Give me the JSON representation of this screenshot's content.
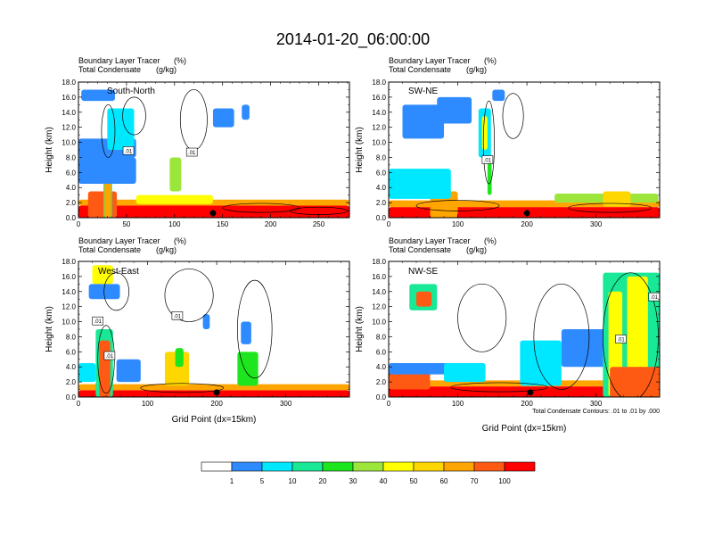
{
  "title": "2014-01-20_06:00:00",
  "colors": {
    "levels": [
      "#ffffff",
      "#2e8bff",
      "#00e8ff",
      "#19e896",
      "#1ee61e",
      "#9ce63c",
      "#ffff00",
      "#ffd700",
      "#ffa500",
      "#ff5a14",
      "#ff0000"
    ],
    "contour": "#000000",
    "marker": "#000000"
  },
  "chart_data": [
    {
      "type": "heatmap",
      "section_label": "South-North",
      "subtitle_left_1": "Boundary Layer Tracer",
      "subtitle_unit_1": "(%)",
      "subtitle_left_2": "Total Condensate",
      "subtitle_unit_2": "(g/kg)",
      "ylabel": "Height (km)",
      "xlabel": "",
      "xlim": [
        0,
        282
      ],
      "ylim": [
        0,
        18
      ],
      "xticks": [
        0,
        50,
        100,
        150,
        200,
        250
      ],
      "yticks": [
        0,
        2,
        4,
        6,
        8,
        10,
        12,
        14,
        16,
        18
      ],
      "ytick_labels": [
        "0.0",
        "2.0",
        "4.0",
        "6.0",
        "8.0",
        "10.0",
        "12.0",
        "14.0",
        "16.0",
        "18.0"
      ],
      "marker_x": 140,
      "contour_labels": [
        {
          "text": ".01",
          "x": 52,
          "y": 8.9
        },
        {
          "text": ".01",
          "x": 118,
          "y": 8.7
        }
      ],
      "tracer_blobs": [
        {
          "x": 0,
          "y": 0,
          "w": 282,
          "h": 1.6,
          "level": 10
        },
        {
          "x": 0,
          "y": 1.6,
          "w": 282,
          "h": 0.8,
          "level": 8
        },
        {
          "x": 10,
          "y": 0,
          "w": 30,
          "h": 3.5,
          "level": 9
        },
        {
          "x": 26,
          "y": 0,
          "w": 9,
          "h": 8.5,
          "level": 3
        },
        {
          "x": 27,
          "y": 0,
          "w": 7,
          "h": 6.5,
          "level": 8
        },
        {
          "x": 0,
          "y": 4.5,
          "w": 60,
          "h": 3.5,
          "level": 1
        },
        {
          "x": 0,
          "y": 8.0,
          "w": 60,
          "h": 2.5,
          "level": 1
        },
        {
          "x": 3,
          "y": 15.5,
          "w": 35,
          "h": 1.5,
          "level": 1
        },
        {
          "x": 30,
          "y": 9.0,
          "w": 28,
          "h": 5.5,
          "level": 2
        },
        {
          "x": 95,
          "y": 3.5,
          "w": 12,
          "h": 4.5,
          "level": 5
        },
        {
          "x": 140,
          "y": 12.0,
          "w": 22,
          "h": 2.5,
          "level": 1
        },
        {
          "x": 170,
          "y": 13.0,
          "w": 8,
          "h": 2.0,
          "level": 1
        },
        {
          "x": 60,
          "y": 1.8,
          "w": 80,
          "h": 1.2,
          "level": 6
        }
      ],
      "condensate_loops": [
        {
          "cx": 31,
          "cy": 11.5,
          "rx": 7,
          "ry": 3.5
        },
        {
          "cx": 58,
          "cy": 13.5,
          "rx": 12,
          "ry": 2.5
        },
        {
          "cx": 120,
          "cy": 13.0,
          "rx": 14,
          "ry": 4.0
        },
        {
          "cx": 190,
          "cy": 1.3,
          "rx": 40,
          "ry": 0.6
        },
        {
          "cx": 250,
          "cy": 0.9,
          "rx": 30,
          "ry": 0.5
        }
      ]
    },
    {
      "type": "heatmap",
      "section_label": "SW-NE",
      "subtitle_left_1": "Boundary Layer Tracer",
      "subtitle_unit_1": "(%)",
      "subtitle_left_2": "Total Condensate",
      "subtitle_unit_2": "(g/kg)",
      "ylabel": "Height (km)",
      "xlabel": "",
      "xlim": [
        0,
        392
      ],
      "ylim": [
        0,
        18
      ],
      "xticks": [
        0,
        100,
        200,
        300
      ],
      "yticks": [
        0,
        2,
        4,
        6,
        8,
        10,
        12,
        14,
        16,
        18
      ],
      "ytick_labels": [
        "0.0",
        "2.0",
        "4.0",
        "6.0",
        "8.0",
        "10.0",
        "12.0",
        "14.0",
        "16.0",
        "18.0"
      ],
      "marker_x": 200,
      "contour_labels": [
        {
          "text": ".01",
          "x": 143,
          "y": 7.7
        }
      ],
      "tracer_blobs": [
        {
          "x": 0,
          "y": 0,
          "w": 392,
          "h": 1.4,
          "level": 10
        },
        {
          "x": 0,
          "y": 1.4,
          "w": 392,
          "h": 0.9,
          "level": 8
        },
        {
          "x": 60,
          "y": 0,
          "w": 40,
          "h": 3.5,
          "level": 8
        },
        {
          "x": 20,
          "y": 10.5,
          "w": 60,
          "h": 4.5,
          "level": 1
        },
        {
          "x": 70,
          "y": 12.5,
          "w": 50,
          "h": 3.5,
          "level": 1
        },
        {
          "x": 130,
          "y": 8.0,
          "w": 18,
          "h": 6.5,
          "level": 2
        },
        {
          "x": 135,
          "y": 9.0,
          "w": 8,
          "h": 4.5,
          "level": 6
        },
        {
          "x": 143,
          "y": 3.0,
          "w": 6,
          "h": 5.0,
          "level": 4
        },
        {
          "x": 150,
          "y": 15.5,
          "w": 18,
          "h": 1.5,
          "level": 1
        },
        {
          "x": 0,
          "y": 2.5,
          "w": 90,
          "h": 4.0,
          "level": 2
        },
        {
          "x": 240,
          "y": 2.0,
          "w": 150,
          "h": 1.2,
          "level": 5
        },
        {
          "x": 310,
          "y": 1.5,
          "w": 40,
          "h": 2.0,
          "level": 7
        }
      ],
      "condensate_loops": [
        {
          "cx": 145,
          "cy": 10.0,
          "rx": 8,
          "ry": 5.5
        },
        {
          "cx": 180,
          "cy": 13.5,
          "rx": 15,
          "ry": 3.0
        },
        {
          "cx": 100,
          "cy": 1.6,
          "rx": 60,
          "ry": 0.7
        },
        {
          "cx": 320,
          "cy": 1.3,
          "rx": 60,
          "ry": 0.6
        }
      ]
    },
    {
      "type": "heatmap",
      "section_label": "West-East",
      "subtitle_left_1": "Boundary Layer Tracer",
      "subtitle_unit_1": "(%)",
      "subtitle_left_2": "Total Condensate",
      "subtitle_unit_2": "(g/kg)",
      "ylabel": "Height (km)",
      "xlabel": "Grid Point (dx=15km)",
      "xlim": [
        0,
        392
      ],
      "ylim": [
        0,
        18
      ],
      "xticks": [
        0,
        100,
        200,
        300
      ],
      "yticks": [
        0,
        2,
        4,
        6,
        8,
        10,
        12,
        14,
        16,
        18
      ],
      "ytick_labels": [
        "0.0",
        "2.0",
        "4.0",
        "6.0",
        "8.0",
        "10.0",
        "12.0",
        "14.0",
        "16.0",
        "18.0"
      ],
      "marker_x": 200,
      "contour_labels": [
        {
          "text": ".01",
          "x": 28,
          "y": 10.1
        },
        {
          "text": ".01",
          "x": 45,
          "y": 5.5
        },
        {
          "text": ".01",
          "x": 143,
          "y": 10.8
        }
      ],
      "tracer_blobs": [
        {
          "x": 0,
          "y": 0,
          "w": 392,
          "h": 0.9,
          "level": 10
        },
        {
          "x": 0,
          "y": 0.9,
          "w": 392,
          "h": 0.8,
          "level": 8
        },
        {
          "x": 20,
          "y": 15.0,
          "w": 30,
          "h": 2.5,
          "level": 6
        },
        {
          "x": 15,
          "y": 13.0,
          "w": 45,
          "h": 2.0,
          "level": 1
        },
        {
          "x": 25,
          "y": 0,
          "w": 25,
          "h": 9.0,
          "level": 3
        },
        {
          "x": 30,
          "y": 0,
          "w": 16,
          "h": 7.5,
          "level": 9
        },
        {
          "x": 0,
          "y": 2.0,
          "w": 25,
          "h": 2.5,
          "level": 2
        },
        {
          "x": 55,
          "y": 2.0,
          "w": 35,
          "h": 3.0,
          "level": 1
        },
        {
          "x": 125,
          "y": 1.5,
          "w": 35,
          "h": 4.5,
          "level": 7
        },
        {
          "x": 140,
          "y": 4.0,
          "w": 12,
          "h": 2.5,
          "level": 4
        },
        {
          "x": 230,
          "y": 1.5,
          "w": 30,
          "h": 4.5,
          "level": 4
        },
        {
          "x": 180,
          "y": 9.0,
          "w": 10,
          "h": 2.0,
          "level": 1
        },
        {
          "x": 235,
          "y": 7.0,
          "w": 15,
          "h": 3.0,
          "level": 1
        }
      ],
      "condensate_loops": [
        {
          "cx": 40,
          "cy": 5.0,
          "rx": 12,
          "ry": 4.5
        },
        {
          "cx": 55,
          "cy": 14.0,
          "rx": 18,
          "ry": 2.5
        },
        {
          "cx": 160,
          "cy": 13.5,
          "rx": 35,
          "ry": 3.5
        },
        {
          "cx": 255,
          "cy": 9.0,
          "rx": 25,
          "ry": 6.5
        },
        {
          "cx": 150,
          "cy": 1.2,
          "rx": 60,
          "ry": 0.6
        }
      ]
    },
    {
      "type": "heatmap",
      "section_label": "NW-SE",
      "subtitle_left_1": "Boundary Layer Tracer",
      "subtitle_unit_1": "(%)",
      "subtitle_left_2": "Total Condensate",
      "subtitle_unit_2": "(g/kg)",
      "ylabel": "Height (km)",
      "xlabel": "Grid Point (dx=15km)",
      "xlim": [
        0,
        392
      ],
      "ylim": [
        0,
        18
      ],
      "xticks": [
        0,
        100,
        200,
        300
      ],
      "yticks": [
        0,
        2,
        4,
        6,
        8,
        10,
        12,
        14,
        16,
        18
      ],
      "ytick_labels": [
        "0.0",
        "2.0",
        "4.0",
        "6.0",
        "8.0",
        "10.0",
        "12.0",
        "14.0",
        "16.0",
        "18.0"
      ],
      "marker_x": 205,
      "contour_note": "Total Condensate Contours: .01 to .01 by .000",
      "contour_labels": [
        {
          "text": ".01",
          "x": 384,
          "y": 13.3
        },
        {
          "text": ".01",
          "x": 336,
          "y": 7.7
        }
      ],
      "tracer_blobs": [
        {
          "x": 0,
          "y": 0,
          "w": 392,
          "h": 1.4,
          "level": 10
        },
        {
          "x": 0,
          "y": 1.4,
          "w": 392,
          "h": 0.8,
          "level": 8
        },
        {
          "x": 0,
          "y": 1.0,
          "w": 60,
          "h": 2.5,
          "level": 9
        },
        {
          "x": 30,
          "y": 11.5,
          "w": 40,
          "h": 3.5,
          "level": 3
        },
        {
          "x": 40,
          "y": 12.0,
          "w": 22,
          "h": 2.0,
          "level": 9
        },
        {
          "x": 0,
          "y": 3.0,
          "w": 140,
          "h": 1.5,
          "level": 1
        },
        {
          "x": 80,
          "y": 2.0,
          "w": 60,
          "h": 2.5,
          "level": 2
        },
        {
          "x": 190,
          "y": 1.5,
          "w": 60,
          "h": 6.0,
          "level": 2
        },
        {
          "x": 250,
          "y": 4.0,
          "w": 70,
          "h": 5.0,
          "level": 1
        },
        {
          "x": 310,
          "y": 0,
          "w": 82,
          "h": 16.5,
          "level": 3
        },
        {
          "x": 318,
          "y": 0,
          "w": 20,
          "h": 14.0,
          "level": 6
        },
        {
          "x": 345,
          "y": 0,
          "w": 30,
          "h": 16.0,
          "level": 6
        },
        {
          "x": 320,
          "y": 0,
          "w": 72,
          "h": 4.0,
          "level": 9
        }
      ],
      "condensate_loops": [
        {
          "cx": 135,
          "cy": 10.5,
          "rx": 35,
          "ry": 4.5
        },
        {
          "cx": 250,
          "cy": 8.0,
          "rx": 40,
          "ry": 7.0
        },
        {
          "cx": 350,
          "cy": 8.0,
          "rx": 40,
          "ry": 8.5
        },
        {
          "cx": 160,
          "cy": 1.3,
          "rx": 70,
          "ry": 0.6
        }
      ]
    }
  ],
  "legend": {
    "labels": [
      "1",
      "5",
      "10",
      "20",
      "30",
      "40",
      "50",
      "60",
      "70",
      "100"
    ]
  }
}
